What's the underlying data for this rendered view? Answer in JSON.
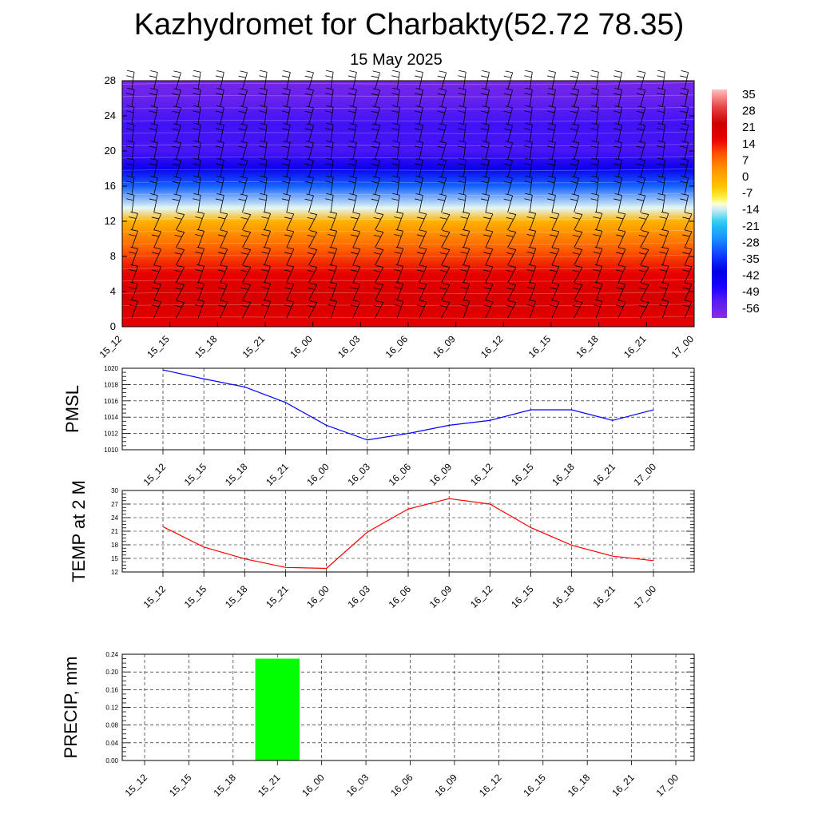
{
  "header": {
    "title": "Kazhydromet for Charbakty(52.72 78.35)",
    "subtitle": "15 May 2025"
  },
  "chart_data": [
    {
      "type": "heatmap",
      "title": "",
      "xlabel": "",
      "ylabel": "",
      "x_ticks": [
        "15_12",
        "15_15",
        "15_18",
        "15_21",
        "16_00",
        "16_03",
        "16_06",
        "16_09",
        "16_12",
        "16_15",
        "16_18",
        "16_21",
        "17_00"
      ],
      "y_ticks": [
        0,
        4,
        8,
        12,
        16,
        20,
        24,
        28
      ],
      "ylim": [
        0,
        28
      ],
      "colorbar_labels": [
        "35",
        "28",
        "21",
        "14",
        "7",
        "0",
        "-7",
        "-14",
        "-21",
        "-28",
        "-35",
        "-42",
        "-49",
        "-56"
      ],
      "colorbar_range": [
        -63,
        38
      ],
      "levels": [
        {
          "y": 0,
          "value": 16
        },
        {
          "y": 3,
          "value": 20
        },
        {
          "y": 6,
          "value": 16
        },
        {
          "y": 9,
          "value": 8
        },
        {
          "y": 12,
          "value": -2
        },
        {
          "y": 13.5,
          "value": -14
        },
        {
          "y": 16,
          "value": -32
        },
        {
          "y": 18,
          "value": -45
        },
        {
          "y": 20,
          "value": -54
        },
        {
          "y": 23,
          "value": -53
        },
        {
          "y": 26,
          "value": -58
        },
        {
          "y": 28,
          "value": -60
        }
      ],
      "wind_barbs": true
    },
    {
      "type": "line",
      "ylabel": "PMSL",
      "categories": [
        "15_12",
        "15_15",
        "15_18",
        "15_21",
        "16_00",
        "16_03",
        "16_06",
        "16_09",
        "16_12",
        "16_15",
        "16_18",
        "16_21",
        "17_00"
      ],
      "series": [
        {
          "values": [
            1019.8,
            1018.7,
            1017.7,
            1015.8,
            1013.0,
            1011.2,
            1012.0,
            1013.0,
            1013.6,
            1014.9,
            1014.9,
            1013.6,
            1014.9
          ]
        }
      ],
      "ylim": [
        1010,
        1020
      ],
      "y_ticks": [
        "1010",
        "1012",
        "1014",
        "1016",
        "1018",
        "1020"
      ],
      "grid": true,
      "color": "#0000ff"
    },
    {
      "type": "line",
      "ylabel": "TEMP at 2 M",
      "categories": [
        "15_12",
        "15_15",
        "15_18",
        "15_21",
        "16_00",
        "16_03",
        "16_06",
        "16_09",
        "16_12",
        "16_15",
        "16_18",
        "16_21",
        "17_00"
      ],
      "series": [
        {
          "values": [
            22.0,
            17.5,
            14.9,
            13.0,
            12.8,
            20.8,
            25.9,
            28.2,
            27.0,
            21.8,
            17.9,
            15.5,
            14.5
          ]
        }
      ],
      "ylim": [
        12,
        30
      ],
      "y_ticks": [
        "12",
        "15",
        "18",
        "21",
        "24",
        "27",
        "30"
      ],
      "grid": true,
      "color": "#ff0000"
    },
    {
      "type": "bar",
      "ylabel": "PRECIP, mm",
      "categories": [
        "15_12",
        "15_15",
        "15_18",
        "15_21",
        "16_00",
        "16_03",
        "16_06",
        "16_09",
        "16_12",
        "16_15",
        "16_18",
        "16_21",
        "17_00"
      ],
      "values": [
        0,
        0,
        0,
        0.23,
        0,
        0,
        0,
        0,
        0,
        0,
        0,
        0,
        0
      ],
      "ylim": [
        0,
        0.24
      ],
      "y_ticks": [
        "0.00",
        "0.04",
        "0.08",
        "0.12",
        "0.16",
        "0.20",
        "0.24"
      ],
      "grid": true,
      "color": "#00ff00"
    }
  ]
}
